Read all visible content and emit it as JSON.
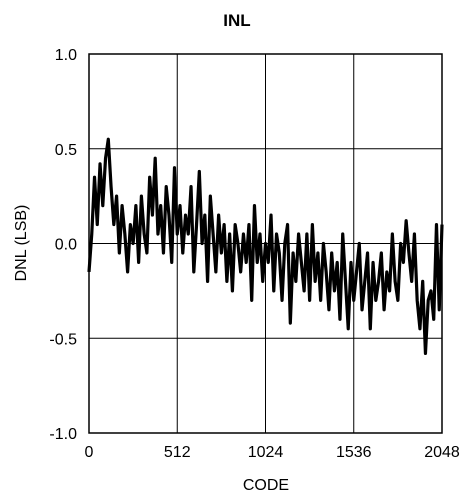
{
  "chart_data": {
    "type": "line",
    "title": "INL",
    "xlabel": "CODE",
    "ylabel": "DNL (LSB)",
    "xlim": [
      0,
      2048
    ],
    "ylim": [
      -1.0,
      1.0
    ],
    "xticks": [
      0,
      512,
      1024,
      1536,
      2048
    ],
    "xtick_labels": [
      "0",
      "512",
      "1024",
      "1536",
      "2048"
    ],
    "yticks": [
      -1.0,
      -0.5,
      0.0,
      0.5,
      1.0
    ],
    "ytick_labels": [
      "-1.0",
      "-0.5",
      "0.0",
      "0.5",
      "1.0"
    ],
    "grid": true,
    "legend": "none",
    "line_color": "#000000",
    "series": [
      {
        "x": [
          0,
          16,
          32,
          48,
          64,
          80,
          96,
          112,
          128,
          144,
          160,
          176,
          192,
          208,
          224,
          240,
          256,
          272,
          288,
          304,
          320,
          336,
          352,
          368,
          384,
          400,
          416,
          432,
          448,
          464,
          480,
          496,
          512,
          528,
          544,
          560,
          576,
          592,
          608,
          624,
          640,
          656,
          672,
          688,
          704,
          720,
          736,
          752,
          768,
          784,
          800,
          816,
          832,
          848,
          864,
          880,
          896,
          912,
          928,
          944,
          960,
          976,
          992,
          1008,
          1024,
          1040,
          1056,
          1072,
          1088,
          1104,
          1120,
          1136,
          1152,
          1168,
          1184,
          1200,
          1216,
          1232,
          1248,
          1264,
          1280,
          1296,
          1312,
          1328,
          1344,
          1360,
          1376,
          1392,
          1408,
          1424,
          1440,
          1456,
          1472,
          1488,
          1504,
          1520,
          1536,
          1552,
          1568,
          1584,
          1600,
          1616,
          1632,
          1648,
          1664,
          1680,
          1696,
          1712,
          1728,
          1744,
          1760,
          1776,
          1792,
          1808,
          1824,
          1840,
          1856,
          1872,
          1888,
          1904,
          1920,
          1936,
          1952,
          1968,
          1984,
          2000,
          2016,
          2032,
          2048
        ],
        "values": [
          -0.15,
          0.05,
          0.35,
          0.1,
          0.42,
          0.2,
          0.45,
          0.55,
          0.3,
          0.1,
          0.25,
          -0.05,
          0.2,
          0.05,
          -0.15,
          0.1,
          0.0,
          0.2,
          -0.1,
          0.25,
          0.05,
          -0.05,
          0.35,
          0.15,
          0.45,
          0.05,
          0.2,
          -0.05,
          0.3,
          0.15,
          -0.1,
          0.4,
          0.05,
          0.2,
          -0.05,
          0.15,
          0.05,
          0.3,
          -0.15,
          0.1,
          0.38,
          0.0,
          0.15,
          -0.2,
          0.25,
          0.05,
          -0.15,
          0.15,
          -0.05,
          0.1,
          -0.2,
          0.05,
          -0.25,
          0.1,
          0.0,
          -0.15,
          0.05,
          -0.1,
          0.1,
          -0.3,
          0.2,
          -0.1,
          0.05,
          -0.2,
          0.0,
          -0.1,
          0.15,
          -0.25,
          0.05,
          -0.05,
          -0.3,
          0.0,
          0.1,
          -0.42,
          -0.05,
          -0.2,
          0.05,
          -0.1,
          -0.25,
          0.05,
          -0.3,
          0.1,
          -0.2,
          -0.05,
          -0.3,
          0.0,
          -0.15,
          -0.35,
          -0.05,
          -0.25,
          -0.1,
          -0.4,
          0.05,
          -0.2,
          -0.45,
          -0.1,
          -0.3,
          -0.15,
          0.0,
          -0.35,
          -0.2,
          -0.05,
          -0.45,
          -0.1,
          -0.3,
          -0.2,
          -0.05,
          -0.35,
          -0.15,
          -0.25,
          0.05,
          -0.2,
          -0.3,
          0.0,
          -0.1,
          0.12,
          -0.05,
          -0.2,
          0.05,
          -0.3,
          -0.45,
          -0.2,
          -0.58,
          -0.3,
          -0.25,
          -0.4,
          0.1,
          -0.35,
          0.1
        ]
      }
    ]
  }
}
